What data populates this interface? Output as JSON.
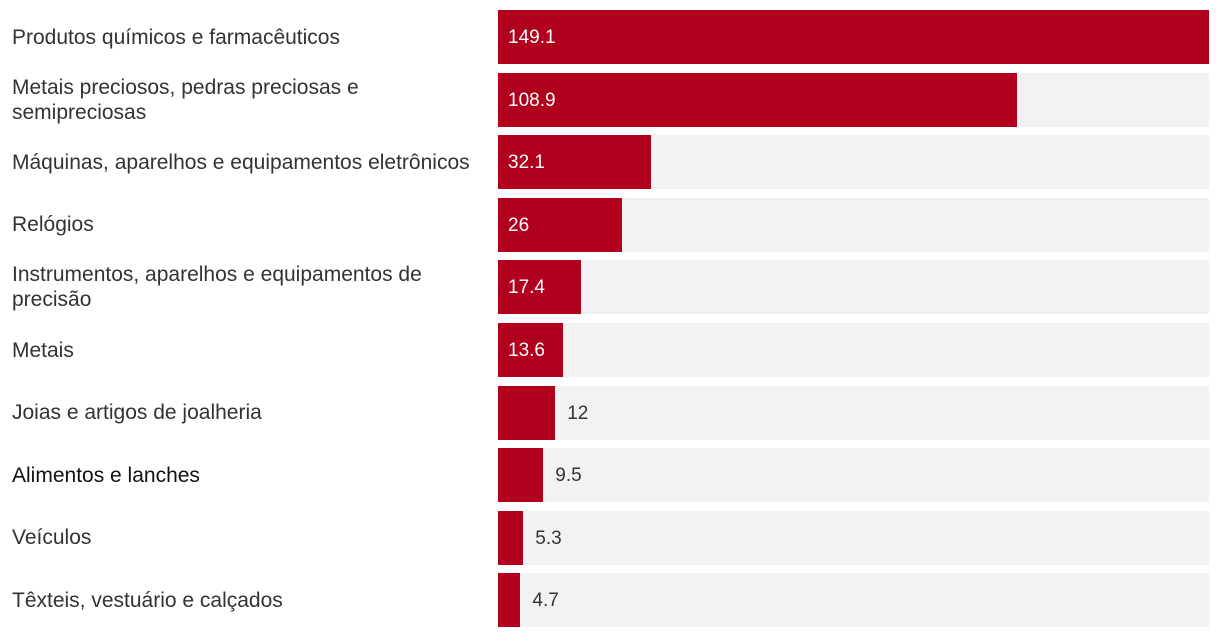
{
  "chart_data": {
    "type": "bar",
    "orientation": "horizontal",
    "title": "",
    "xlabel": "",
    "ylabel": "",
    "xlim": [
      0,
      149.1
    ],
    "bar_color": "#b0001e",
    "track_color": "#f2f2f2",
    "highlight_category": "Alimentos e lanches",
    "categories": [
      "Produtos químicos e farmacêuticos",
      "Metais preciosos, pedras preciosas e semipreciosas",
      "Máquinas, aparelhos e equipamentos eletrônicos",
      "Relógios",
      "Instrumentos, aparelhos e equipamentos de precisão",
      "Metais",
      "Joias e artigos de joalheria",
      "Alimentos e lanches",
      "Veículos",
      "Têxteis, vestuário e calçados"
    ],
    "values": [
      149.1,
      108.9,
      32.1,
      26,
      17.4,
      13.6,
      12,
      9.5,
      5.3,
      4.7
    ],
    "value_labels": [
      "149.1",
      "108.9",
      "32.1",
      "26",
      "17.4",
      "13.6",
      "12",
      "9.5",
      "5.3",
      "4.7"
    ]
  }
}
